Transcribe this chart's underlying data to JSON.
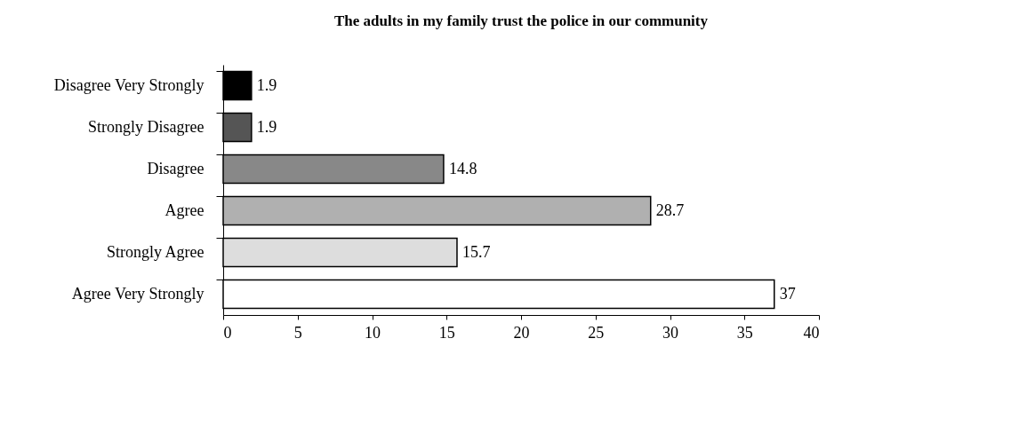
{
  "chart_data": {
    "type": "bar",
    "orientation": "horizontal",
    "title": "The adults in my family trust the police in our community",
    "categories": [
      "Disagree Very Strongly",
      "Strongly Disagree",
      "Disagree",
      "Agree",
      "Strongly Agree",
      "Agree Very Strongly"
    ],
    "values": [
      1.9,
      1.9,
      14.8,
      28.7,
      15.7,
      37
    ],
    "colors": [
      "#000000",
      "#555555",
      "#888888",
      "#b0b0b0",
      "#dddddd",
      "#ffffff"
    ],
    "xlim": [
      0,
      40
    ],
    "xticks": [
      0,
      5,
      10,
      15,
      20,
      25,
      30,
      35,
      40
    ],
    "data_labels": true,
    "grid": false
  }
}
